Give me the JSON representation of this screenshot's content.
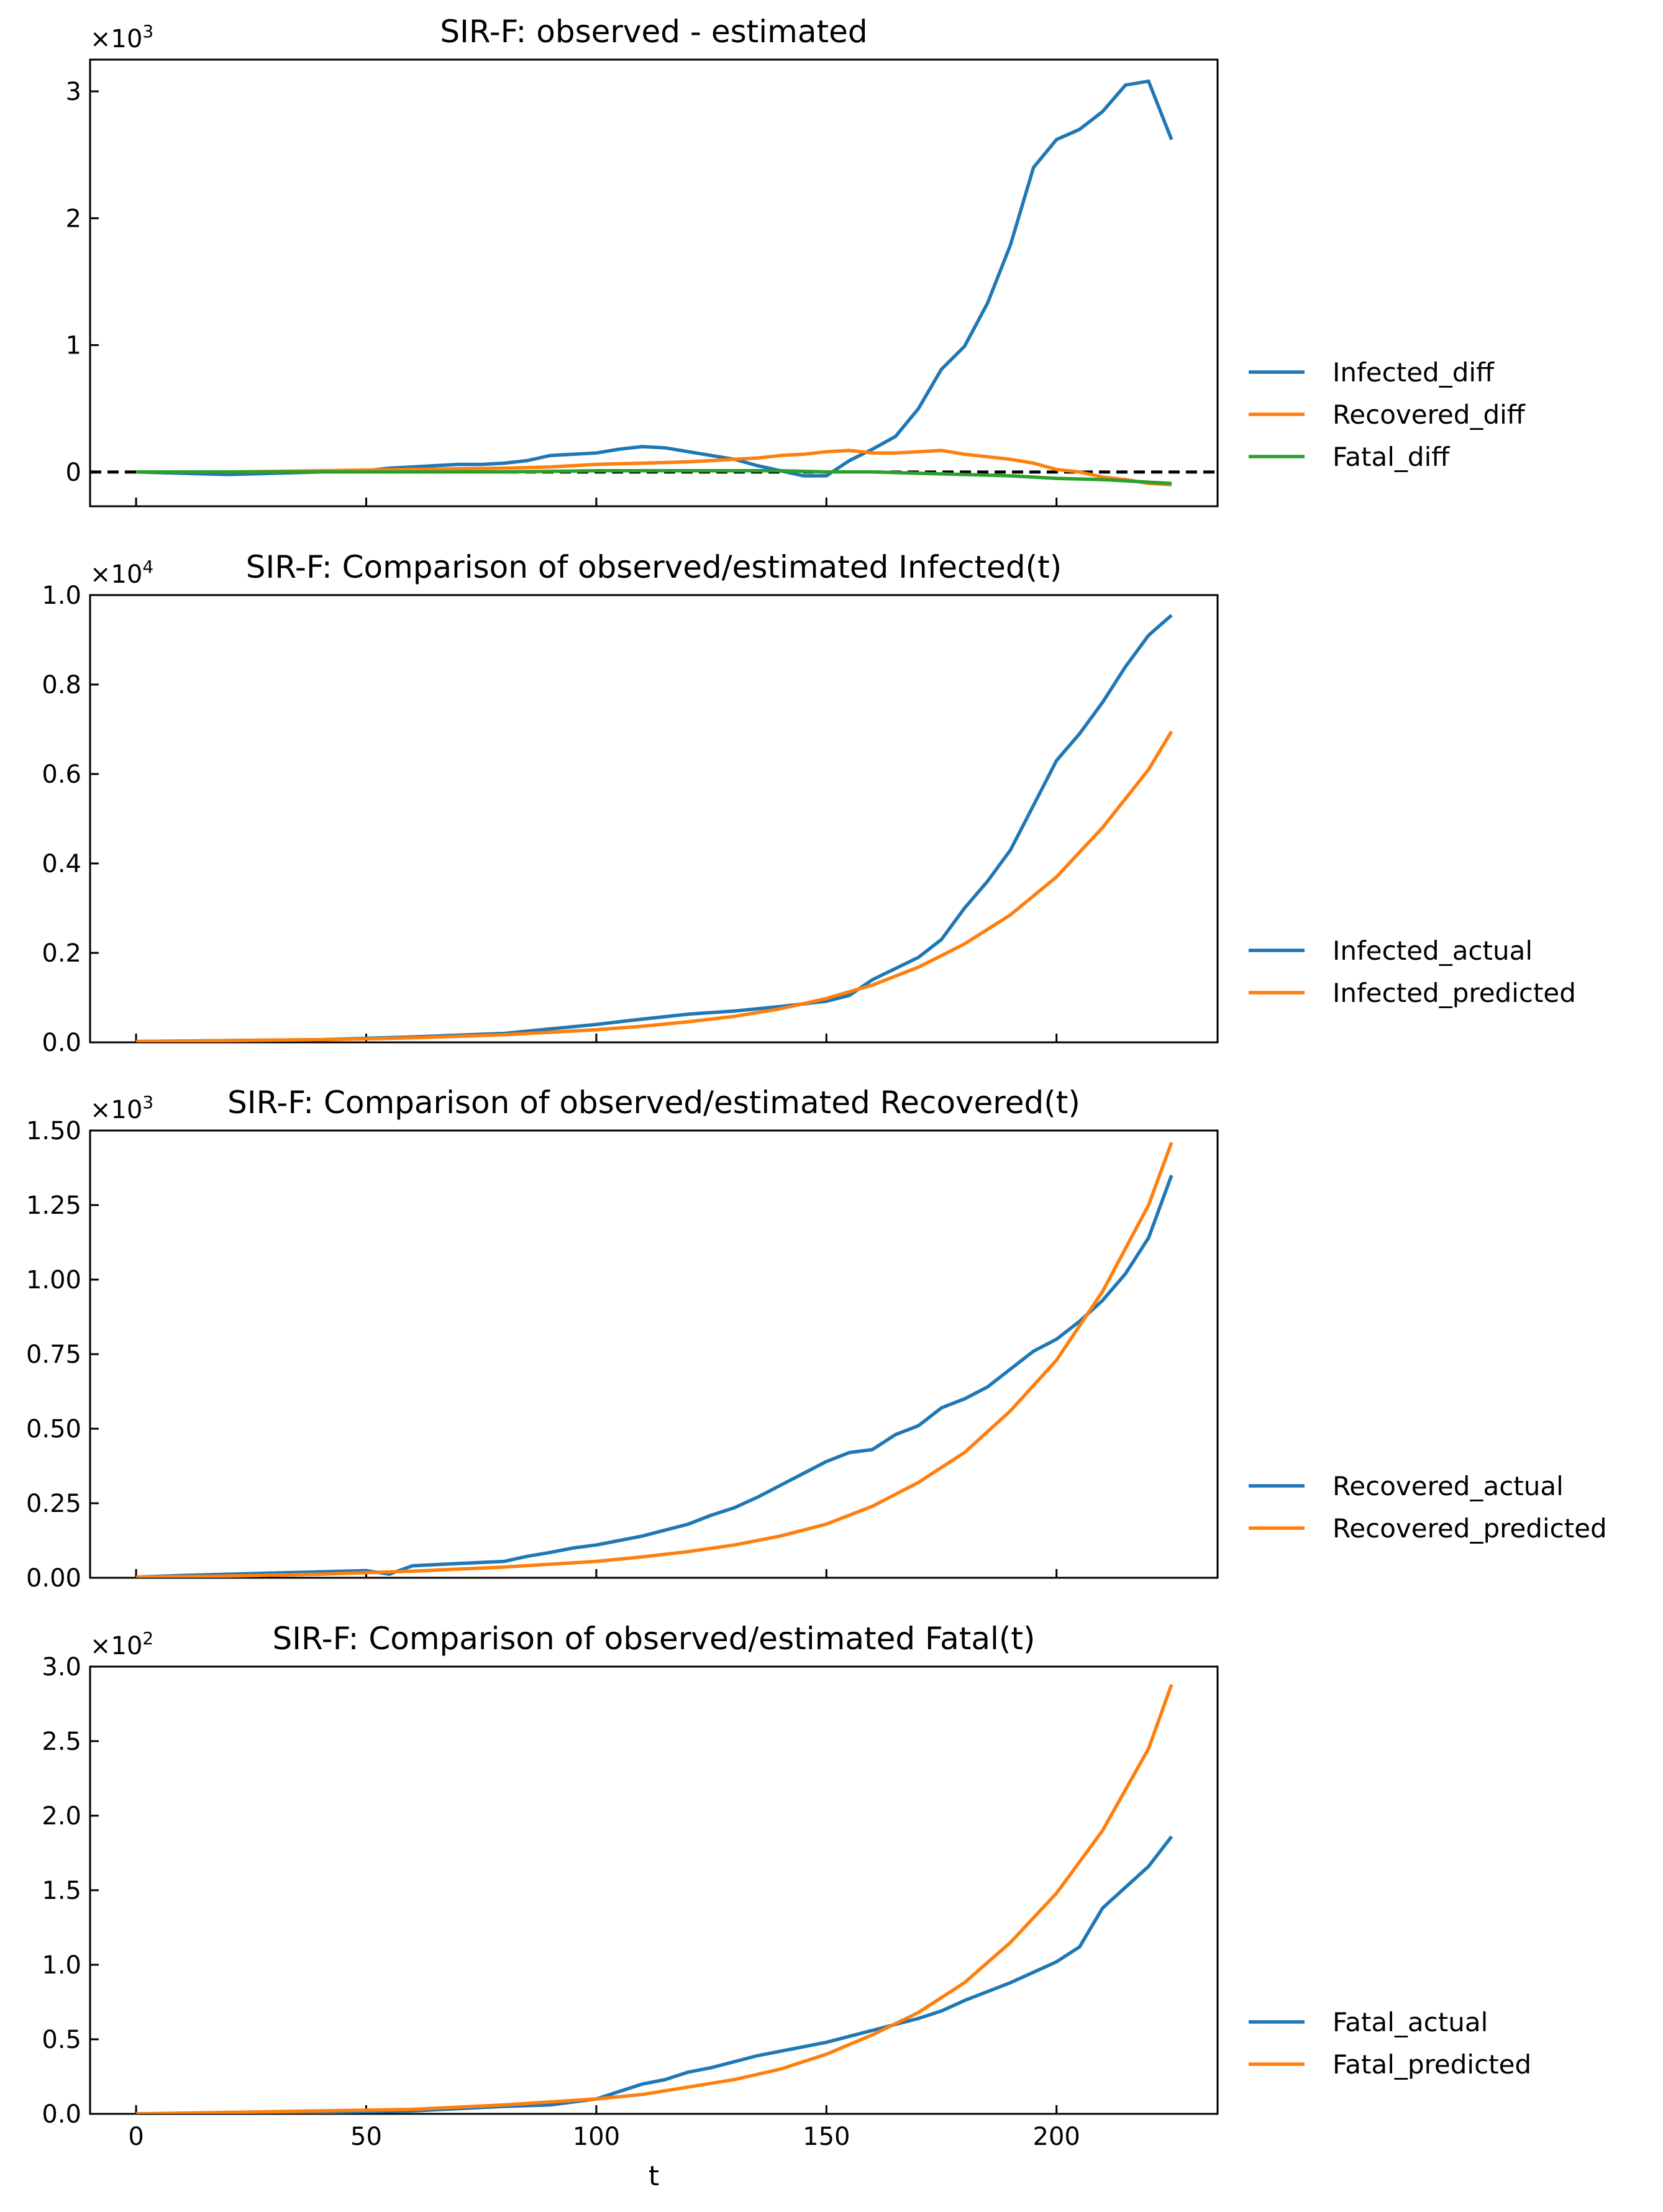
{
  "colors": {
    "blue": "#1f77b4",
    "orange": "#ff7f0e",
    "green": "#2ca02c",
    "zero_line": "#000000"
  },
  "chart_data": [
    {
      "type": "line",
      "title": "SIR-F: observed - estimated",
      "multiplier": "×10",
      "multiplier_exp": "3",
      "xlim": [
        -10,
        235
      ],
      "ylim": [
        -0.27,
        3.25
      ],
      "yticks": [
        0,
        1,
        2,
        3
      ],
      "ytick_labels": [
        "0",
        "1",
        "2",
        "3"
      ],
      "xticks": [
        0,
        50,
        100,
        150,
        200
      ],
      "zero_line": true,
      "legend": "right",
      "series": [
        {
          "name": "Infected_diff",
          "color": "blue",
          "x": [
            0,
            10,
            20,
            30,
            40,
            50,
            55,
            60,
            65,
            70,
            75,
            80,
            85,
            90,
            95,
            100,
            105,
            110,
            115,
            120,
            125,
            130,
            135,
            140,
            145,
            150,
            155,
            160,
            165,
            170,
            175,
            180,
            185,
            190,
            195,
            200,
            205,
            210,
            215,
            220,
            225
          ],
          "y": [
            0,
            -0.01,
            -0.02,
            -0.01,
            0,
            0.01,
            0.03,
            0.04,
            0.05,
            0.06,
            0.06,
            0.07,
            0.09,
            0.13,
            0.14,
            0.15,
            0.18,
            0.2,
            0.19,
            0.16,
            0.13,
            0.1,
            0.05,
            0.01,
            -0.03,
            -0.03,
            0.09,
            0.18,
            0.28,
            0.5,
            0.81,
            0.99,
            1.33,
            1.79,
            2.4,
            2.62,
            2.7,
            2.84,
            3.05,
            3.08,
            2.62
          ]
        },
        {
          "name": "Recovered_diff",
          "color": "orange",
          "x": [
            0,
            20,
            40,
            60,
            80,
            90,
            100,
            110,
            120,
            125,
            130,
            135,
            140,
            145,
            150,
            155,
            160,
            165,
            170,
            175,
            180,
            185,
            190,
            195,
            200,
            205,
            210,
            215,
            220,
            225
          ],
          "y": [
            0,
            0,
            0.01,
            0.02,
            0.03,
            0.04,
            0.06,
            0.07,
            0.08,
            0.09,
            0.1,
            0.11,
            0.13,
            0.14,
            0.16,
            0.17,
            0.15,
            0.15,
            0.16,
            0.17,
            0.14,
            0.12,
            0.1,
            0.07,
            0.02,
            0,
            -0.04,
            -0.06,
            -0.09,
            -0.1
          ]
        },
        {
          "name": "Fatal_diff",
          "color": "green",
          "x": [
            0,
            20,
            40,
            60,
            80,
            100,
            120,
            130,
            140,
            150,
            160,
            170,
            180,
            190,
            200,
            210,
            215,
            220,
            225
          ],
          "y": [
            0,
            0,
            0,
            0,
            0,
            0.01,
            0.01,
            0.01,
            0.01,
            0,
            0,
            -0.01,
            -0.02,
            -0.03,
            -0.05,
            -0.06,
            -0.07,
            -0.08,
            -0.09
          ]
        }
      ]
    },
    {
      "type": "line",
      "title": "SIR-F: Comparison of observed/estimated Infected(t)",
      "multiplier": "×10",
      "multiplier_exp": "4",
      "xlim": [
        -10,
        235
      ],
      "ylim": [
        0,
        1.0
      ],
      "yticks": [
        0,
        0.2,
        0.4,
        0.6,
        0.8,
        1.0
      ],
      "ytick_labels": [
        "0.0",
        "0.2",
        "0.4",
        "0.6",
        "0.8",
        "1.0"
      ],
      "xticks": [
        0,
        50,
        100,
        150,
        200
      ],
      "legend": "right",
      "series": [
        {
          "name": "Infected_actual",
          "color": "blue",
          "x": [
            0,
            20,
            40,
            50,
            60,
            70,
            80,
            90,
            100,
            110,
            120,
            130,
            140,
            150,
            155,
            160,
            165,
            170,
            175,
            180,
            185,
            190,
            195,
            200,
            205,
            210,
            215,
            220,
            225
          ],
          "y": [
            0.002,
            0.004,
            0.006,
            0.009,
            0.012,
            0.016,
            0.02,
            0.03,
            0.04,
            0.052,
            0.063,
            0.07,
            0.08,
            0.092,
            0.105,
            0.14,
            0.165,
            0.19,
            0.23,
            0.3,
            0.36,
            0.43,
            0.53,
            0.63,
            0.69,
            0.76,
            0.84,
            0.91,
            0.955
          ]
        },
        {
          "name": "Infected_predicted",
          "color": "orange",
          "x": [
            0,
            20,
            40,
            60,
            80,
            100,
            110,
            120,
            130,
            140,
            150,
            160,
            170,
            180,
            190,
            200,
            210,
            220,
            225
          ],
          "y": [
            0.002,
            0.004,
            0.006,
            0.01,
            0.017,
            0.028,
            0.036,
            0.046,
            0.058,
            0.075,
            0.098,
            0.128,
            0.168,
            0.22,
            0.285,
            0.37,
            0.48,
            0.61,
            0.695
          ]
        }
      ]
    },
    {
      "type": "line",
      "title": "SIR-F: Comparison of observed/estimated Recovered(t)",
      "multiplier": "×10",
      "multiplier_exp": "3",
      "xlim": [
        -10,
        235
      ],
      "ylim": [
        0,
        1.5
      ],
      "yticks": [
        0,
        0.25,
        0.5,
        0.75,
        1.0,
        1.25,
        1.5
      ],
      "ytick_labels": [
        "0.00",
        "0.25",
        "0.50",
        "0.75",
        "1.00",
        "1.25",
        "1.50"
      ],
      "xticks": [
        0,
        50,
        100,
        150,
        200
      ],
      "legend": "right",
      "series": [
        {
          "name": "Recovered_actual",
          "color": "blue",
          "x": [
            0,
            10,
            20,
            30,
            40,
            50,
            55,
            60,
            70,
            80,
            85,
            90,
            95,
            100,
            105,
            110,
            115,
            120,
            125,
            130,
            135,
            140,
            145,
            150,
            155,
            160,
            165,
            170,
            175,
            180,
            185,
            190,
            195,
            200,
            205,
            210,
            215,
            220,
            225
          ],
          "y": [
            0.002,
            0.008,
            0.012,
            0.016,
            0.02,
            0.024,
            0.012,
            0.04,
            0.048,
            0.055,
            0.072,
            0.085,
            0.1,
            0.11,
            0.125,
            0.14,
            0.16,
            0.18,
            0.21,
            0.235,
            0.27,
            0.31,
            0.35,
            0.39,
            0.42,
            0.43,
            0.48,
            0.51,
            0.57,
            0.6,
            0.64,
            0.7,
            0.76,
            0.8,
            0.86,
            0.93,
            1.02,
            1.14,
            1.35
          ]
        },
        {
          "name": "Recovered_predicted",
          "color": "orange",
          "x": [
            0,
            20,
            40,
            60,
            80,
            100,
            110,
            120,
            130,
            140,
            150,
            160,
            170,
            180,
            190,
            200,
            210,
            220,
            225
          ],
          "y": [
            0.002,
            0.006,
            0.012,
            0.022,
            0.036,
            0.055,
            0.07,
            0.088,
            0.11,
            0.14,
            0.18,
            0.24,
            0.32,
            0.42,
            0.56,
            0.73,
            0.96,
            1.25,
            1.46
          ]
        }
      ]
    },
    {
      "type": "line",
      "title": "SIR-F: Comparison of observed/estimated Fatal(t)",
      "multiplier": "×10",
      "multiplier_exp": "2",
      "xlim": [
        -10,
        235
      ],
      "ylim": [
        0,
        3.0
      ],
      "yticks": [
        0,
        0.5,
        1.0,
        1.5,
        2.0,
        2.5,
        3.0
      ],
      "ytick_labels": [
        "0.0",
        "0.5",
        "1.0",
        "1.5",
        "2.0",
        "2.5",
        "3.0"
      ],
      "xticks": [
        0,
        50,
        100,
        150,
        200
      ],
      "xtick_labels": [
        "0",
        "50",
        "100",
        "150",
        "200"
      ],
      "xlabel": "t",
      "legend": "right",
      "series": [
        {
          "name": "Fatal_actual",
          "color": "blue",
          "x": [
            0,
            20,
            40,
            60,
            80,
            90,
            100,
            105,
            110,
            115,
            120,
            125,
            130,
            135,
            140,
            145,
            150,
            155,
            160,
            165,
            170,
            175,
            180,
            185,
            190,
            195,
            200,
            205,
            210,
            215,
            220,
            225
          ],
          "y": [
            0,
            0,
            0.01,
            0.02,
            0.05,
            0.06,
            0.1,
            0.15,
            0.2,
            0.23,
            0.28,
            0.31,
            0.35,
            0.39,
            0.42,
            0.45,
            0.48,
            0.52,
            0.56,
            0.6,
            0.64,
            0.69,
            0.76,
            0.82,
            0.88,
            0.95,
            1.02,
            1.12,
            1.38,
            1.52,
            1.66,
            1.86
          ]
        },
        {
          "name": "Fatal_predicted",
          "color": "orange",
          "x": [
            0,
            20,
            40,
            60,
            80,
            100,
            110,
            120,
            130,
            140,
            150,
            160,
            170,
            180,
            190,
            200,
            210,
            220,
            225
          ],
          "y": [
            0,
            0.01,
            0.02,
            0.03,
            0.06,
            0.1,
            0.13,
            0.18,
            0.23,
            0.3,
            0.4,
            0.53,
            0.68,
            0.88,
            1.15,
            1.48,
            1.9,
            2.45,
            2.88
          ]
        }
      ]
    }
  ]
}
